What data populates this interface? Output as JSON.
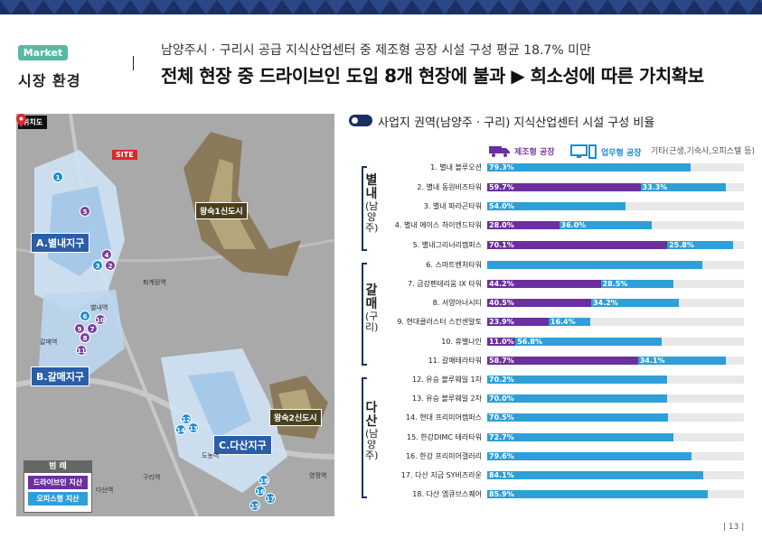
{
  "header": {
    "badge": "Market",
    "section": "시장 환경",
    "subtitle": "남양주시 · 구리시 공급 지식산업센터 중 제조형 공장 시설 구성 평균 18.7% 미만",
    "headline": "전체 현장 중 드라이브인 도입 8개 현장에 불과 ▶ 희소성에 따른 가치확보"
  },
  "map": {
    "tag": "위치도",
    "site": "SITE",
    "zones": {
      "a": "A.별내지구",
      "b": "B.갈매지구",
      "c": "C.다산지구"
    },
    "newtowns": {
      "t1": "왕숙1신도시",
      "t2": "왕숙2신도시"
    },
    "legend": {
      "title": "범 례",
      "drive": "드라이브인 지산",
      "office": "오피스형 지산"
    },
    "places": {
      "p1": "퇴계원역",
      "p2": "별내역",
      "p3": "갈매역",
      "p4": "도농역",
      "p5": "구리역",
      "p6": "다산역",
      "p7": "양정역"
    },
    "pins": {
      "n1": "1",
      "n2": "2",
      "n3": "3",
      "n4": "4",
      "n5": "5",
      "n6": "6",
      "n7": "7",
      "n8": "8",
      "n9": "9",
      "n10": "10",
      "n11": "11",
      "n12": "12",
      "n13": "13",
      "n14": "14",
      "n15": "15",
      "n16": "16",
      "n17": "17",
      "n18": "18"
    }
  },
  "chart_title": "사업지 권역(남양주 · 구리) 지식산업센터 시설 구성 비율",
  "legend": {
    "factory": "제조형 공장",
    "office": "업무형 공장",
    "other": "기타(근생,기숙사,오피스텔 등)"
  },
  "groups": {
    "g1": {
      "name": "별내",
      "region": "(남양주)"
    },
    "g2": {
      "name": "갈매",
      "region": "(구리)"
    },
    "g3": {
      "name": "다산",
      "region": "(남양주)"
    }
  },
  "colors": {
    "factory": "#6b2fa0",
    "office": "#2e9fd8",
    "other": "#e8e8e8",
    "navy": "#1a2f63"
  },
  "chart_data": {
    "type": "bar",
    "orientation": "horizontal-stacked",
    "categories": [
      "1. 별내 블루오션",
      "2. 별내 동원비즈타워",
      "3. 별내 파라곤타워",
      "4. 별내 에이스 하이엔드타워",
      "5. 별내그리너리캠퍼스",
      "6. 스마트벤처타워",
      "7. 금강펜테리움 IX 타워",
      "8. 서영아너시티",
      "9. 현대클러스터 스칸센알토",
      "10. 휴밸나인",
      "11. 갈매테라타워",
      "12. 유승 블루웨일 1차",
      "13. 유승 블루웨일 2차",
      "14. 현대 프리미어캠퍼스",
      "15. 한강DIMC 테라타워",
      "16. 한강 프리미어갤러리",
      "17. 다산 지금 SY비즈라운",
      "18. 다산 엠큐브스퀘어"
    ],
    "series": [
      {
        "name": "제조형 공장",
        "values": [
          0,
          59.7,
          0,
          28.0,
          70.1,
          0,
          44.2,
          40.5,
          23.9,
          11.0,
          58.7,
          0,
          0,
          0,
          0,
          0,
          0,
          0
        ],
        "labels": [
          "",
          "59.7%",
          "",
          "28.0%",
          "70.1%",
          "",
          "44.2%",
          "40.5%",
          "23.9%",
          "11.0%",
          "58.7%",
          "",
          "",
          "",
          "",
          "",
          "",
          ""
        ]
      },
      {
        "name": "업무형 공장",
        "values": [
          79.3,
          33.3,
          54.0,
          36.0,
          25.8,
          83.7,
          28.5,
          34.2,
          16.4,
          56.8,
          34.1,
          70.2,
          70.0,
          70.5,
          72.7,
          79.6,
          84.1,
          85.9
        ],
        "labels": [
          "79.3%",
          "33.3%",
          "54.0%",
          "36.0%",
          "25.8%",
          "",
          "28.5%",
          "34.2%",
          "16.4%",
          "56.8%",
          "34.1%",
          "70.2%",
          "70.0%",
          "70.5%",
          "72.7%",
          "79.6%",
          "84.1%",
          "85.9%"
        ]
      }
    ],
    "xlim": [
      0,
      100
    ]
  },
  "page_number": "| 13 |"
}
